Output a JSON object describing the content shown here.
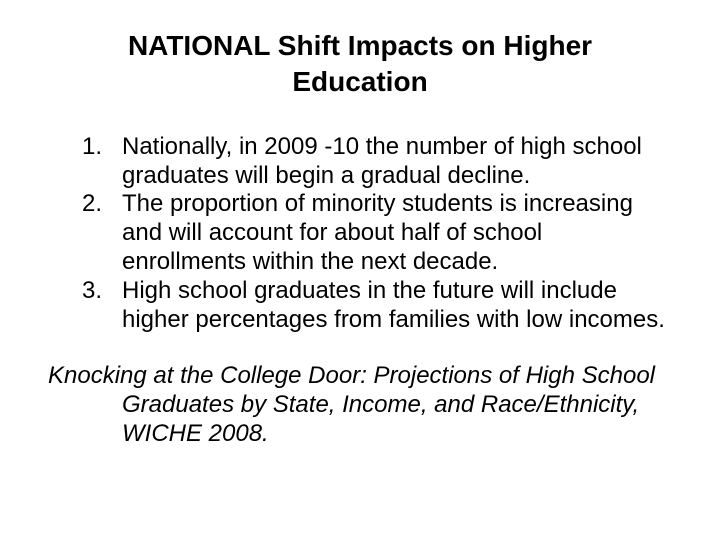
{
  "title": "NATIONAL Shift Impacts on Higher Education",
  "items": [
    "Nationally, in 2009 -10 the number of high school graduates will begin a gradual decline.",
    "The proportion of minority students is increasing and will account for about half of school enrollments within the next decade.",
    "High school graduates in the future will include higher percentages from families with low incomes."
  ],
  "citation": "Knocking at the College Door: Projections of High School Graduates by State, Income, and Race/Ethnicity, WICHE 2008."
}
